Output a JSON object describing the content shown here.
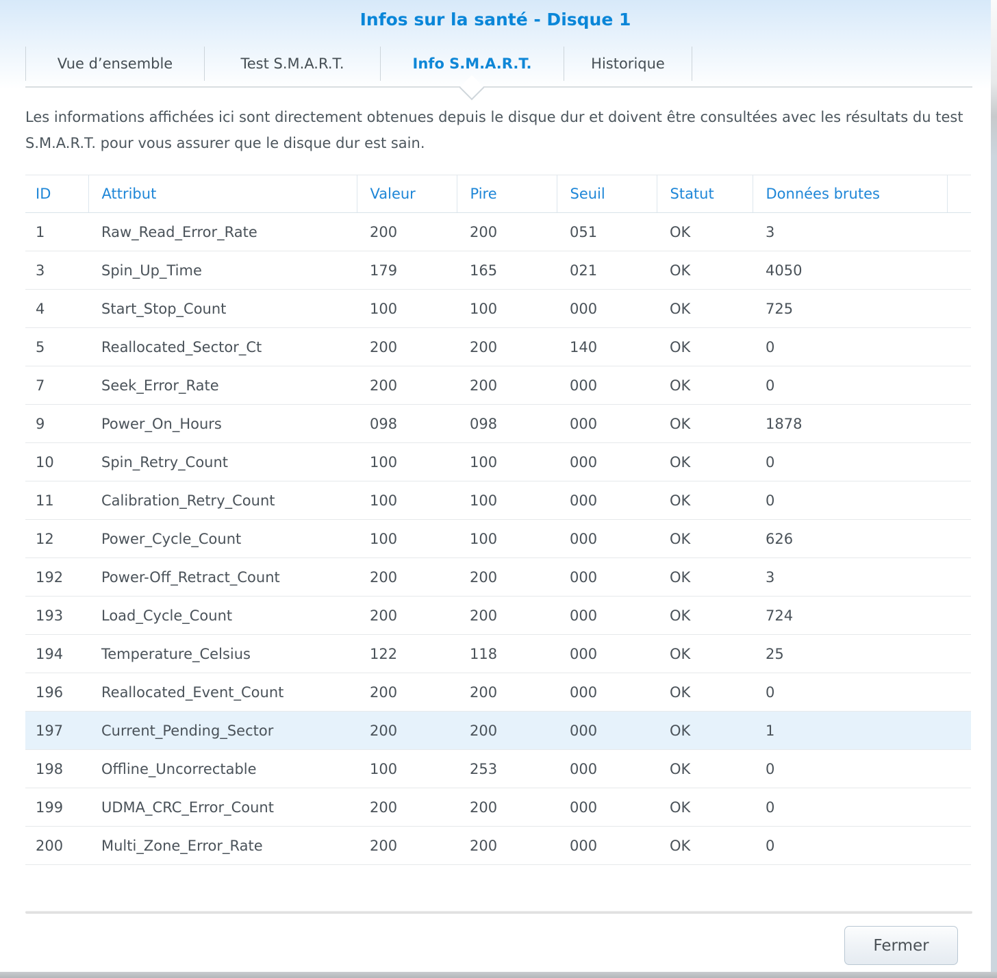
{
  "dialog": {
    "title": "Infos sur la santé - Disque 1",
    "description": "Les informations affichées ici sont directement obtenues depuis le disque dur et doivent être consultées avec les résultats du test S.M.A.R.T. pour vous assurer que le disque dur est sain."
  },
  "tabs": [
    {
      "label": "Vue d’ensemble",
      "active": false
    },
    {
      "label": "Test S.M.A.R.T.",
      "active": false
    },
    {
      "label": "Info S.M.A.R.T.",
      "active": true
    },
    {
      "label": "Historique",
      "active": false
    }
  ],
  "table": {
    "columns": [
      "ID",
      "Attribut",
      "Valeur",
      "Pire",
      "Seuil",
      "Statut",
      "Données brutes"
    ],
    "rows": [
      {
        "id": "1",
        "attribute": "Raw_Read_Error_Rate",
        "value": "200",
        "worst": "200",
        "threshold": "051",
        "status": "OK",
        "raw": "3",
        "highlighted": false
      },
      {
        "id": "3",
        "attribute": "Spin_Up_Time",
        "value": "179",
        "worst": "165",
        "threshold": "021",
        "status": "OK",
        "raw": "4050",
        "highlighted": false
      },
      {
        "id": "4",
        "attribute": "Start_Stop_Count",
        "value": "100",
        "worst": "100",
        "threshold": "000",
        "status": "OK",
        "raw": "725",
        "highlighted": false
      },
      {
        "id": "5",
        "attribute": "Reallocated_Sector_Ct",
        "value": "200",
        "worst": "200",
        "threshold": "140",
        "status": "OK",
        "raw": "0",
        "highlighted": false
      },
      {
        "id": "7",
        "attribute": "Seek_Error_Rate",
        "value": "200",
        "worst": "200",
        "threshold": "000",
        "status": "OK",
        "raw": "0",
        "highlighted": false
      },
      {
        "id": "9",
        "attribute": "Power_On_Hours",
        "value": "098",
        "worst": "098",
        "threshold": "000",
        "status": "OK",
        "raw": "1878",
        "highlighted": false
      },
      {
        "id": "10",
        "attribute": "Spin_Retry_Count",
        "value": "100",
        "worst": "100",
        "threshold": "000",
        "status": "OK",
        "raw": "0",
        "highlighted": false
      },
      {
        "id": "11",
        "attribute": "Calibration_Retry_Count",
        "value": "100",
        "worst": "100",
        "threshold": "000",
        "status": "OK",
        "raw": "0",
        "highlighted": false
      },
      {
        "id": "12",
        "attribute": "Power_Cycle_Count",
        "value": "100",
        "worst": "100",
        "threshold": "000",
        "status": "OK",
        "raw": "626",
        "highlighted": false
      },
      {
        "id": "192",
        "attribute": "Power-Off_Retract_Count",
        "value": "200",
        "worst": "200",
        "threshold": "000",
        "status": "OK",
        "raw": "3",
        "highlighted": false
      },
      {
        "id": "193",
        "attribute": "Load_Cycle_Count",
        "value": "200",
        "worst": "200",
        "threshold": "000",
        "status": "OK",
        "raw": "724",
        "highlighted": false
      },
      {
        "id": "194",
        "attribute": "Temperature_Celsius",
        "value": "122",
        "worst": "118",
        "threshold": "000",
        "status": "OK",
        "raw": "25",
        "highlighted": false
      },
      {
        "id": "196",
        "attribute": "Reallocated_Event_Count",
        "value": "200",
        "worst": "200",
        "threshold": "000",
        "status": "OK",
        "raw": "0",
        "highlighted": false
      },
      {
        "id": "197",
        "attribute": "Current_Pending_Sector",
        "value": "200",
        "worst": "200",
        "threshold": "000",
        "status": "OK",
        "raw": "1",
        "highlighted": true
      },
      {
        "id": "198",
        "attribute": "Offline_Uncorrectable",
        "value": "100",
        "worst": "253",
        "threshold": "000",
        "status": "OK",
        "raw": "0",
        "highlighted": false
      },
      {
        "id": "199",
        "attribute": "UDMA_CRC_Error_Count",
        "value": "200",
        "worst": "200",
        "threshold": "000",
        "status": "OK",
        "raw": "0",
        "highlighted": false
      },
      {
        "id": "200",
        "attribute": "Multi_Zone_Error_Rate",
        "value": "200",
        "worst": "200",
        "threshold": "000",
        "status": "OK",
        "raw": "0",
        "highlighted": false
      }
    ]
  },
  "footer": {
    "close_label": "Fermer"
  },
  "colors": {
    "title_blue": "#0a86d8",
    "header_blue": "#1e86d7",
    "active_tab_blue": "#0f87d7",
    "body_text": "#4c565d",
    "row_highlight": "#e6f2fb",
    "header_gradient_top": "#d7e9f9"
  }
}
